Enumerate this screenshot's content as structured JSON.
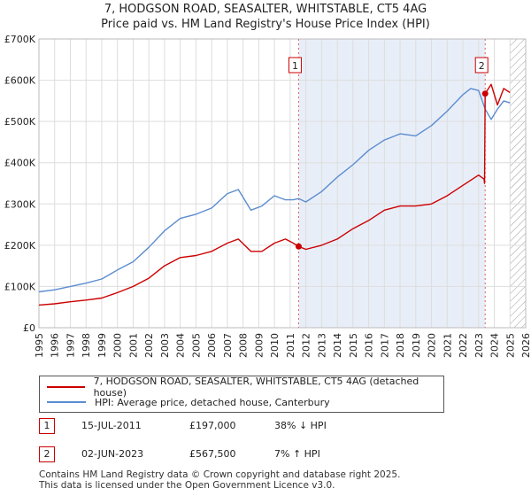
{
  "title_line1": "7, HODGSON ROAD, SEASALTER, WHITSTABLE, CT5 4AG",
  "title_line2": "Price paid vs. HM Land Registry's House Price Index (HPI)",
  "legend": [
    {
      "label": "7, HODGSON ROAD, SEASALTER, WHITSTABLE, CT5 4AG (detached house)",
      "color": "#cc0000"
    },
    {
      "label": "HPI: Average price, detached house, Canterbury",
      "color": "#5b8ccf"
    }
  ],
  "sales": [
    {
      "badge": "1",
      "date": "15-JUL-2011",
      "price": "£197,000",
      "hpi": "38% ↓ HPI"
    },
    {
      "badge": "2",
      "date": "02-JUN-2023",
      "price": "£567,500",
      "hpi": "7% ↑ HPI"
    }
  ],
  "footer_line1": "Contains HM Land Registry data © Crown copyright and database right 2025.",
  "footer_line2": "This data is licensed under the Open Government Licence v3.0.",
  "chart_data": {
    "type": "line",
    "title": "7, HODGSON ROAD, SEASALTER, WHITSTABLE, CT5 4AG — Price paid vs. HM Land Registry's House Price Index (HPI)",
    "xlabel": "",
    "ylabel": "",
    "xlim": [
      1995,
      2026
    ],
    "ylim": [
      0,
      700000
    ],
    "x_ticks": [
      "1995",
      "1996",
      "1997",
      "1998",
      "1999",
      "2000",
      "2001",
      "2002",
      "2003",
      "2004",
      "2005",
      "2006",
      "2007",
      "2008",
      "2009",
      "2010",
      "2011",
      "2012",
      "2013",
      "2014",
      "2015",
      "2016",
      "2017",
      "2018",
      "2019",
      "2020",
      "2021",
      "2022",
      "2023",
      "2024",
      "2025",
      "2026"
    ],
    "y_ticks": [
      {
        "value": 0,
        "label": "£0"
      },
      {
        "value": 100000,
        "label": "£100K"
      },
      {
        "value": 200000,
        "label": "£200K"
      },
      {
        "value": 300000,
        "label": "£300K"
      },
      {
        "value": 400000,
        "label": "£400K"
      },
      {
        "value": 500000,
        "label": "£500K"
      },
      {
        "value": 600000,
        "label": "£600K"
      },
      {
        "value": 700000,
        "label": "£700K"
      }
    ],
    "grid": true,
    "shaded_regions": [
      {
        "x0": 2011.54,
        "x1": 2023.42,
        "color": "#e8eef8"
      },
      {
        "x0": 2025.0,
        "x1": 2026.0,
        "hatched": true
      }
    ],
    "sale_markers": [
      {
        "label": "1",
        "x": 2011.54,
        "y": 197000
      },
      {
        "label": "2",
        "x": 2023.42,
        "y": 567500
      }
    ],
    "series": [
      {
        "name": "7, HODGSON ROAD, SEASALTER, WHITSTABLE, CT5 4AG (detached house)",
        "color": "#cc0000",
        "x": [
          1995,
          1996,
          1997,
          1998,
          1999,
          2000,
          2001,
          2002,
          2003,
          2004,
          2005,
          2006,
          2007,
          2007.7,
          2008.5,
          2009.2,
          2010,
          2010.7,
          2011.2,
          2011.54,
          2012,
          2013,
          2014,
          2015,
          2016,
          2017,
          2018,
          2019,
          2020,
          2021,
          2022,
          2023,
          2023.35,
          2023.38,
          2023.42,
          2023.8,
          2024.2,
          2024.6,
          2025
        ],
        "y": [
          55000,
          58000,
          63000,
          67000,
          72000,
          85000,
          100000,
          120000,
          150000,
          170000,
          175000,
          185000,
          205000,
          215000,
          185000,
          185000,
          205000,
          215000,
          205000,
          197000,
          190000,
          200000,
          215000,
          240000,
          260000,
          285000,
          295000,
          295000,
          300000,
          320000,
          345000,
          370000,
          360000,
          350000,
          567500,
          590000,
          540000,
          580000,
          570000
        ]
      },
      {
        "name": "HPI: Average price, detached house, Canterbury",
        "color": "#5b8ccf",
        "x": [
          1995,
          1996,
          1997,
          1998,
          1999,
          2000,
          2001,
          2002,
          2003,
          2004,
          2005,
          2006,
          2007,
          2007.7,
          2008.5,
          2009.2,
          2010,
          2010.7,
          2011.2,
          2011.54,
          2012,
          2013,
          2014,
          2015,
          2016,
          2017,
          2018,
          2019,
          2020,
          2021,
          2022,
          2022.5,
          2023,
          2023.42,
          2023.8,
          2024.2,
          2024.6,
          2025
        ],
        "y": [
          87000,
          92000,
          100000,
          108000,
          118000,
          140000,
          160000,
          195000,
          235000,
          265000,
          275000,
          290000,
          325000,
          335000,
          285000,
          295000,
          320000,
          310000,
          310000,
          313000,
          305000,
          330000,
          365000,
          395000,
          430000,
          455000,
          470000,
          465000,
          490000,
          525000,
          565000,
          580000,
          575000,
          530000,
          505000,
          530000,
          550000,
          545000
        ]
      }
    ]
  }
}
